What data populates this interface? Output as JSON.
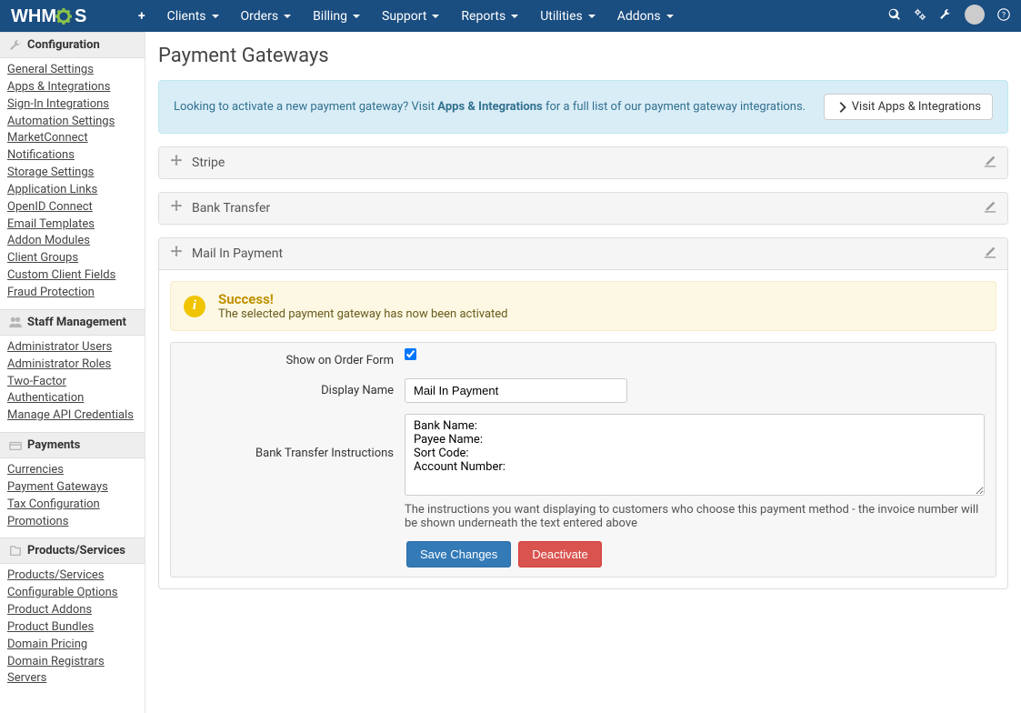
{
  "brand": "WHMCS",
  "nav": {
    "items": [
      "Clients",
      "Orders",
      "Billing",
      "Support",
      "Reports",
      "Utilities",
      "Addons"
    ]
  },
  "sidebar": {
    "sections": [
      {
        "title": "Configuration",
        "links": [
          "General Settings",
          "Apps & Integrations",
          "Sign-In Integrations",
          "Automation Settings",
          "MarketConnect",
          "Notifications",
          "Storage Settings",
          "Application Links",
          "OpenID Connect",
          "Email Templates",
          "Addon Modules",
          "Client Groups",
          "Custom Client Fields",
          "Fraud Protection"
        ]
      },
      {
        "title": "Staff Management",
        "links": [
          "Administrator Users",
          "Administrator Roles",
          "Two-Factor Authentication",
          "Manage API Credentials"
        ]
      },
      {
        "title": "Payments",
        "links": [
          "Currencies",
          "Payment Gateways",
          "Tax Configuration",
          "Promotions"
        ]
      },
      {
        "title": "Products/Services",
        "links": [
          "Products/Services",
          "Configurable Options",
          "Product Addons",
          "Product Bundles",
          "Domain Pricing",
          "Domain Registrars",
          "Servers"
        ]
      }
    ]
  },
  "page": {
    "title": "Payment Gateways",
    "banner_pre": "Looking to activate a new payment gateway? Visit ",
    "banner_link": "Apps & Integrations",
    "banner_post": " for a full list of our payment gateway integrations.",
    "banner_btn": "Visit Apps & Integrations"
  },
  "gateways": {
    "g0": "Stripe",
    "g1": "Bank Transfer",
    "g2": "Mail In Payment"
  },
  "success": {
    "title": "Success!",
    "msg": "The selected payment gateway has now been activated"
  },
  "form": {
    "show_label": "Show on Order Form",
    "show_checked": true,
    "name_label": "Display Name",
    "name_value": "Mail In Payment",
    "instr_label": "Bank Transfer Instructions",
    "instr_value": "Bank Name:\nPayee Name:\nSort Code:\nAccount Number:",
    "instr_help": "The instructions you want displaying to customers who choose this payment method - the invoice number will be shown underneath the text entered above",
    "save": "Save Changes",
    "deactivate": "Deactivate"
  }
}
